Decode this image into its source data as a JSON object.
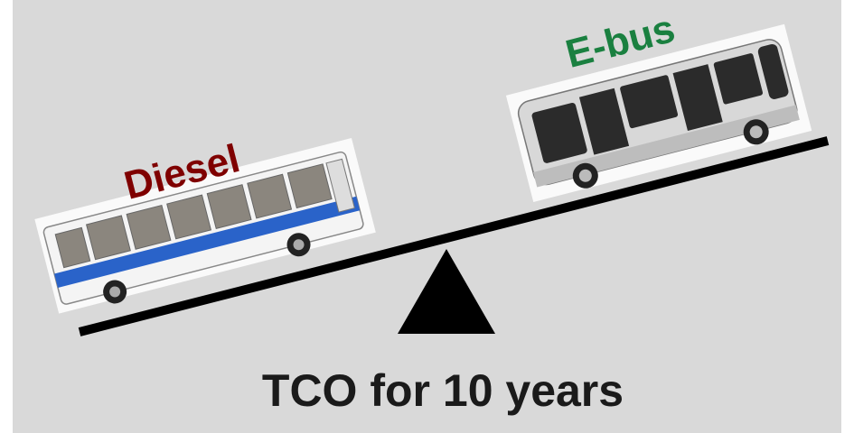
{
  "labels": {
    "left": "Diesel",
    "right": "E-bus"
  },
  "caption": "TCO for 10 years"
}
